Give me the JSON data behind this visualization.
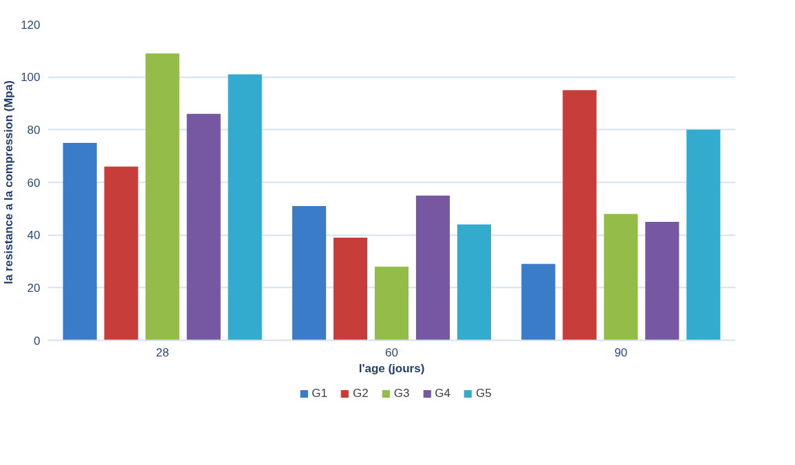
{
  "chart_data": {
    "type": "bar",
    "xlabel": "l'age (jours)",
    "ylabel": "la resistance a la compression (Mpa)",
    "categories": [
      "28",
      "60",
      "90"
    ],
    "series": [
      {
        "name": "G1",
        "color": "#3a7cc8",
        "values": [
          75,
          51,
          29
        ]
      },
      {
        "name": "G2",
        "color": "#c73d3a",
        "values": [
          66,
          39,
          95
        ]
      },
      {
        "name": "G3",
        "color": "#93bc48",
        "values": [
          109,
          28,
          48
        ]
      },
      {
        "name": "G4",
        "color": "#7558a1",
        "values": [
          86,
          55,
          45
        ]
      },
      {
        "name": "G5",
        "color": "#33abcf",
        "values": [
          101,
          44,
          80
        ]
      }
    ],
    "ylim": [
      0,
      120
    ],
    "yticks": [
      0,
      20,
      40,
      60,
      80,
      100,
      120
    ],
    "grid": "y",
    "legend": "bottom"
  }
}
